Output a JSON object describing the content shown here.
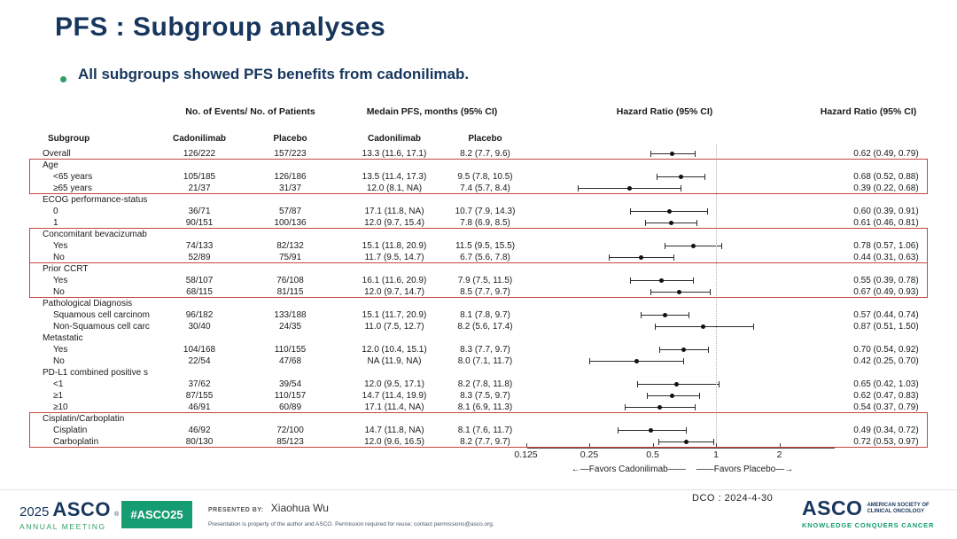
{
  "slide": {
    "title": "PFS : Subgroup analyses",
    "bullet": "All subgroups showed PFS benefits from cadonilimab.",
    "accent_navy": "#17365d",
    "accent_green": "#169c71",
    "highlight_red": "#c3473f"
  },
  "table": {
    "header": {
      "events_group": "No. of Events/ No. of Patients",
      "pfs_group": "Medain PFS, months (95% CI)",
      "hr_plot": "Hazard Ratio (95% CI)",
      "hr_col": "Hazard Ratio (95% CI)",
      "subgroup": "Subgroup",
      "col_cado1": "Cadonilimab",
      "col_plc1": "Placebo",
      "col_cado2": "Cadonilimab",
      "col_plc2": "Placebo"
    },
    "rows": [
      {
        "label": "Overall",
        "events_cado": "126/222",
        "events_placebo": "157/223",
        "pfs_cado": "13.3 (11.6, 17.1)",
        "pfs_placebo": "8.2 (7.7, 9.6)",
        "hr_text": "0.62 (0.49, 0.79)",
        "hr": 0.62,
        "lo": 0.49,
        "hi": 0.79
      },
      {
        "label": "Age",
        "group": true
      },
      {
        "label": "<65 years",
        "indent": true,
        "events_cado": "105/185",
        "events_placebo": "126/186",
        "pfs_cado": "13.5 (11.4, 17.3)",
        "pfs_placebo": "9.5 (7.8, 10.5)",
        "hr_text": "0.68 (0.52, 0.88)",
        "hr": 0.68,
        "lo": 0.52,
        "hi": 0.88
      },
      {
        "label": "≥65 years",
        "indent": true,
        "events_cado": "21/37",
        "events_placebo": "31/37",
        "pfs_cado": "12.0 (8.1, NA)",
        "pfs_placebo": "7.4 (5.7, 8.4)",
        "hr_text": "0.39 (0.22, 0.68)",
        "hr": 0.39,
        "lo": 0.22,
        "hi": 0.68
      },
      {
        "label": "ECOG performance-status",
        "group": true
      },
      {
        "label": "0",
        "indent": true,
        "events_cado": "36/71",
        "events_placebo": "57/87",
        "pfs_cado": "17.1 (11.8, NA)",
        "pfs_placebo": "10.7 (7.9, 14.3)",
        "hr_text": "0.60 (0.39, 0.91)",
        "hr": 0.6,
        "lo": 0.39,
        "hi": 0.91
      },
      {
        "label": "1",
        "indent": true,
        "events_cado": "90/151",
        "events_placebo": "100/136",
        "pfs_cado": "12.0 (9.7, 15.4)",
        "pfs_placebo": "7.8 (6.9, 8.5)",
        "hr_text": "0.61 (0.46, 0.81)",
        "hr": 0.61,
        "lo": 0.46,
        "hi": 0.81
      },
      {
        "label": "Concomitant bevacizumab",
        "group": true
      },
      {
        "label": "Yes",
        "indent": true,
        "events_cado": "74/133",
        "events_placebo": "82/132",
        "pfs_cado": "15.1 (11.8, 20.9)",
        "pfs_placebo": "11.5 (9.5, 15.5)",
        "hr_text": "0.78 (0.57, 1.06)",
        "hr": 0.78,
        "lo": 0.57,
        "hi": 1.06
      },
      {
        "label": "No",
        "indent": true,
        "events_cado": "52/89",
        "events_placebo": "75/91",
        "pfs_cado": "11.7 (9.5, 14.7)",
        "pfs_placebo": "6.7 (5.6, 7.8)",
        "hr_text": "0.44 (0.31, 0.63)",
        "hr": 0.44,
        "lo": 0.31,
        "hi": 0.63
      },
      {
        "label": "Prior CCRT",
        "group": true
      },
      {
        "label": "Yes",
        "indent": true,
        "events_cado": "58/107",
        "events_placebo": "76/108",
        "pfs_cado": "16.1 (11.6, 20.9)",
        "pfs_placebo": "7.9 (7.5, 11.5)",
        "hr_text": "0.55 (0.39, 0.78)",
        "hr": 0.55,
        "lo": 0.39,
        "hi": 0.78
      },
      {
        "label": "No",
        "indent": true,
        "events_cado": "68/115",
        "events_placebo": "81/115",
        "pfs_cado": "12.0 (9.7, 14.7)",
        "pfs_placebo": "8.5 (7.7, 9.7)",
        "hr_text": "0.67 (0.49, 0.93)",
        "hr": 0.67,
        "lo": 0.49,
        "hi": 0.93
      },
      {
        "label": "Pathological Diagnosis",
        "group": true
      },
      {
        "label": "Squamous cell carcinom",
        "indent": true,
        "events_cado": "96/182",
        "events_placebo": "133/188",
        "pfs_cado": "15.1 (11.7, 20.9)",
        "pfs_placebo": "8.1 (7.8, 9.7)",
        "hr_text": "0.57 (0.44, 0.74)",
        "hr": 0.57,
        "lo": 0.44,
        "hi": 0.74
      },
      {
        "label": "Non-Squamous cell carc",
        "indent": true,
        "events_cado": "30/40",
        "events_placebo": "24/35",
        "pfs_cado": "11.0 (7.5, 12.7)",
        "pfs_placebo": "8.2 (5.6, 17.4)",
        "hr_text": "0.87 (0.51, 1.50)",
        "hr": 0.87,
        "lo": 0.51,
        "hi": 1.5
      },
      {
        "label": "Metastatic",
        "group": true
      },
      {
        "label": "Yes",
        "indent": true,
        "events_cado": "104/168",
        "events_placebo": "110/155",
        "pfs_cado": "12.0 (10.4, 15.1)",
        "pfs_placebo": "8.3 (7.7, 9.7)",
        "hr_text": "0.70 (0.54, 0.92)",
        "hr": 0.7,
        "lo": 0.54,
        "hi": 0.92
      },
      {
        "label": "No",
        "indent": true,
        "events_cado": "22/54",
        "events_placebo": "47/68",
        "pfs_cado": "NA (11.9, NA)",
        "pfs_placebo": "8.0 (7.1, 11.7)",
        "hr_text": "0.42 (0.25, 0.70)",
        "hr": 0.42,
        "lo": 0.25,
        "hi": 0.7
      },
      {
        "label": "PD-L1 combined positive s",
        "group": true
      },
      {
        "label": "<1",
        "indent": true,
        "events_cado": "37/62",
        "events_placebo": "39/54",
        "pfs_cado": "12.0 (9.5, 17.1)",
        "pfs_placebo": "8.2 (7.8, 11.8)",
        "hr_text": "0.65 (0.42, 1.03)",
        "hr": 0.65,
        "lo": 0.42,
        "hi": 1.03
      },
      {
        "label": "≥1",
        "indent": true,
        "events_cado": "87/155",
        "events_placebo": "110/157",
        "pfs_cado": "14.7 (11.4, 19.9)",
        "pfs_placebo": "8.3 (7.5, 9.7)",
        "hr_text": "0.62 (0.47, 0.83)",
        "hr": 0.62,
        "lo": 0.47,
        "hi": 0.83
      },
      {
        "label": "≥10",
        "indent": true,
        "events_cado": "46/91",
        "events_placebo": "60/89",
        "pfs_cado": "17.1 (11.4, NA)",
        "pfs_placebo": "8.1 (6.9, 11.3)",
        "hr_text": "0.54 (0.37, 0.79)",
        "hr": 0.54,
        "lo": 0.37,
        "hi": 0.79
      },
      {
        "label": "Cisplatin/Carboplatin",
        "group": true
      },
      {
        "label": "Cisplatin",
        "indent": true,
        "events_cado": "46/92",
        "events_placebo": "72/100",
        "pfs_cado": "14.7 (11.8, NA)",
        "pfs_placebo": "8.1 (7.6, 11.7)",
        "hr_text": "0.49 (0.34, 0.72)",
        "hr": 0.49,
        "lo": 0.34,
        "hi": 0.72
      },
      {
        "label": "Carboplatin",
        "indent": true,
        "events_cado": "80/130",
        "events_placebo": "85/123",
        "pfs_cado": "12.0 (9.6, 16.5)",
        "pfs_placebo": "8.2 (7.7, 9.7)",
        "hr_text": "0.72 (0.53, 0.97)",
        "hr": 0.72,
        "lo": 0.53,
        "hi": 0.97
      }
    ],
    "highlights": [
      {
        "group": "Age",
        "start_row": 1,
        "row_count": 3
      },
      {
        "group": "Concomitant bevacizumab",
        "start_row": 7,
        "row_count": 3
      },
      {
        "group": "Prior CCRT",
        "start_row": 10,
        "row_count": 3
      },
      {
        "group": "Cisplatin/Carboplatin",
        "start_row": 23,
        "row_count": 3
      }
    ]
  },
  "axis": {
    "ticks": [
      {
        "label": "0.125",
        "value": 0.125
      },
      {
        "label": "0.25",
        "value": 0.25
      },
      {
        "label": "0.5",
        "value": 0.5
      },
      {
        "label": "1",
        "value": 1
      },
      {
        "label": "2",
        "value": 2
      }
    ],
    "reference_value": 1,
    "favors_left": "←—Favors Cadonilimab——",
    "favors_right": "——Favors Placebo—→"
  },
  "chart_data": {
    "type": "scatter",
    "subtype": "forest-plot",
    "title": "Hazard Ratio (95% CI)",
    "x_scale": "log2",
    "x_ticks": [
      0.125,
      0.25,
      0.5,
      1,
      2
    ],
    "reference_line": 1,
    "legend_left": "Favors Cadonilimab",
    "legend_right": "Favors Placebo",
    "points": [
      {
        "label": "Overall",
        "hr": 0.62,
        "ci": [
          0.49,
          0.79
        ]
      },
      {
        "label": "Age <65 years",
        "hr": 0.68,
        "ci": [
          0.52,
          0.88
        ]
      },
      {
        "label": "Age ≥65 years",
        "hr": 0.39,
        "ci": [
          0.22,
          0.68
        ]
      },
      {
        "label": "ECOG 0",
        "hr": 0.6,
        "ci": [
          0.39,
          0.91
        ]
      },
      {
        "label": "ECOG 1",
        "hr": 0.61,
        "ci": [
          0.46,
          0.81
        ]
      },
      {
        "label": "Concomitant bevacizumab Yes",
        "hr": 0.78,
        "ci": [
          0.57,
          1.06
        ]
      },
      {
        "label": "Concomitant bevacizumab No",
        "hr": 0.44,
        "ci": [
          0.31,
          0.63
        ]
      },
      {
        "label": "Prior CCRT Yes",
        "hr": 0.55,
        "ci": [
          0.39,
          0.78
        ]
      },
      {
        "label": "Prior CCRT No",
        "hr": 0.67,
        "ci": [
          0.49,
          0.93
        ]
      },
      {
        "label": "Squamous cell carcinoma",
        "hr": 0.57,
        "ci": [
          0.44,
          0.74
        ]
      },
      {
        "label": "Non-Squamous cell carcinoma",
        "hr": 0.87,
        "ci": [
          0.51,
          1.5
        ]
      },
      {
        "label": "Metastatic Yes",
        "hr": 0.7,
        "ci": [
          0.54,
          0.92
        ]
      },
      {
        "label": "Metastatic No",
        "hr": 0.42,
        "ci": [
          0.25,
          0.7
        ]
      },
      {
        "label": "PD-L1 CPS <1",
        "hr": 0.65,
        "ci": [
          0.42,
          1.03
        ]
      },
      {
        "label": "PD-L1 CPS ≥1",
        "hr": 0.62,
        "ci": [
          0.47,
          0.83
        ]
      },
      {
        "label": "PD-L1 CPS ≥10",
        "hr": 0.54,
        "ci": [
          0.37,
          0.79
        ]
      },
      {
        "label": "Cisplatin",
        "hr": 0.49,
        "ci": [
          0.34,
          0.72
        ]
      },
      {
        "label": "Carboplatin",
        "hr": 0.72,
        "ci": [
          0.53,
          0.97
        ]
      }
    ]
  },
  "footer": {
    "logo_year": "2025",
    "logo_asco": "ASCO",
    "logo_reg": "®",
    "logo_meeting": "ANNUAL MEETING",
    "hashtag": "#ASCO25",
    "presented_by_label": "PRESENTED BY:",
    "presenter": "Xiaohua Wu",
    "disclaimer": "Presentation is property of the author and ASCO. Permission required for reuse; contact permissions@asco.org.",
    "dco": "DCO : 2024-4-30",
    "right_logo_asco": "ASCO",
    "right_logo_small1": "AMERICAN SOCIETY OF",
    "right_logo_small2": "CLINICAL ONCOLOGY",
    "right_logo_tagline": "KNOWLEDGE CONQUERS CANCER"
  }
}
